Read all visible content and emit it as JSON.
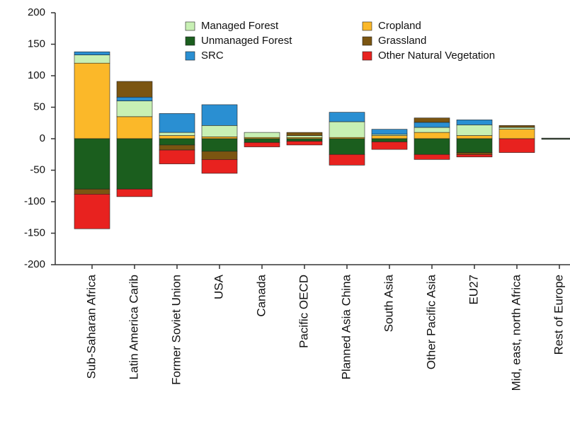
{
  "chart_data": {
    "type": "stacked_bar",
    "categories": [
      "Sub-Saharan Africa",
      "Latin America Carib",
      "Former Soviet Union",
      "USA",
      "Canada",
      "Pacific OECD",
      "Planned Asia China",
      "South Asia",
      "Other Pacific Asia",
      "EU27",
      "Mid, east, north Africa",
      "Rest of Europe"
    ],
    "series": [
      {
        "name": "Managed Forest",
        "color": "#c8f0b4",
        "values": [
          13,
          25,
          5,
          18,
          8,
          3,
          25,
          2,
          8,
          17,
          3,
          1
        ]
      },
      {
        "name": "Unmanaged Forest",
        "color": "#1b5e1e",
        "values": [
          -80,
          -80,
          -10,
          -20,
          -6,
          -4,
          -25,
          -5,
          -25,
          -22,
          0,
          -1
        ]
      },
      {
        "name": "SRC",
        "color": "#2a8fd2",
        "values": [
          5,
          6,
          30,
          33,
          0,
          0,
          15,
          8,
          8,
          8,
          0,
          0
        ]
      },
      {
        "name": "Cropland",
        "color": "#fbb829",
        "values": [
          120,
          35,
          5,
          3,
          2,
          2,
          2,
          5,
          10,
          5,
          15,
          0
        ]
      },
      {
        "name": "Grassland",
        "color": "#7b5511",
        "values": [
          -8,
          25,
          -8,
          -13,
          0,
          5,
          0,
          0,
          7,
          -3,
          3,
          0
        ]
      },
      {
        "name": "Other Natural Vegetation",
        "color": "#e8221f",
        "values": [
          -55,
          -12,
          -22,
          -22,
          -7,
          -6,
          -17,
          -12,
          -8,
          -4,
          -22,
          0
        ]
      }
    ],
    "ylim": [
      -200,
      200
    ],
    "yticks": [
      -200,
      -150,
      -100,
      -50,
      0,
      50,
      100,
      150,
      200
    ]
  }
}
